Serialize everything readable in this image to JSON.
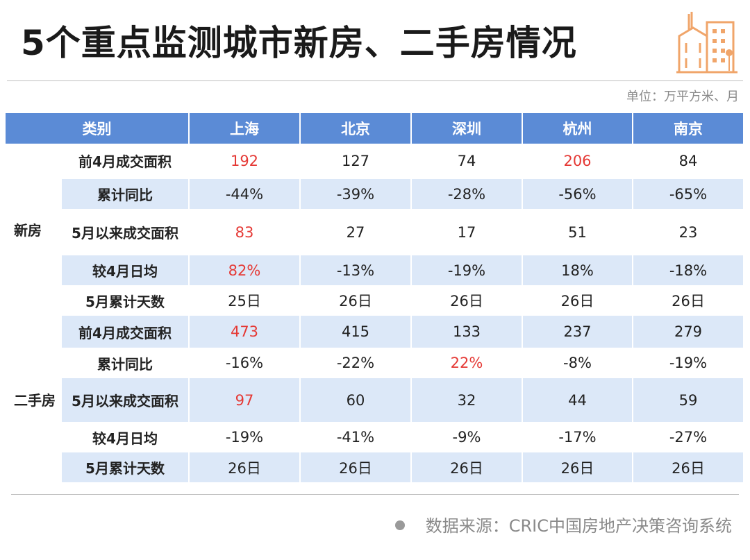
{
  "title": "5个重点监测城市新房、二手房情况",
  "unit": "单位：万平方米、月",
  "colors": {
    "header_bg": "#5b8bd6",
    "row_shade": "#dce8f8",
    "highlight": "#e53935",
    "logo": "#f0a56a"
  },
  "table": {
    "headers": [
      "类别",
      "上海",
      "北京",
      "深圳",
      "杭州",
      "南京"
    ],
    "groups": [
      {
        "name": "新房",
        "rows": [
          {
            "metric": "前4月成交面积",
            "values": [
              "192",
              "127",
              "74",
              "206",
              "84"
            ],
            "highlight": [
              true,
              false,
              false,
              true,
              false
            ]
          },
          {
            "metric": "累计同比",
            "values": [
              "-44%",
              "-39%",
              "-28%",
              "-56%",
              "-65%"
            ],
            "highlight": [
              false,
              false,
              false,
              false,
              false
            ]
          },
          {
            "metric": "5月以来成交面积",
            "values": [
              "83",
              "27",
              "17",
              "51",
              "23"
            ],
            "highlight": [
              true,
              false,
              false,
              false,
              false
            ]
          },
          {
            "metric": "较4月日均",
            "values": [
              "82%",
              "-13%",
              "-19%",
              "18%",
              "-18%"
            ],
            "highlight": [
              true,
              false,
              false,
              false,
              false
            ]
          },
          {
            "metric": "5月累计天数",
            "values": [
              "25日",
              "26日",
              "26日",
              "26日",
              "26日"
            ],
            "highlight": [
              false,
              false,
              false,
              false,
              false
            ]
          }
        ]
      },
      {
        "name": "二手房",
        "rows": [
          {
            "metric": "前4月成交面积",
            "values": [
              "473",
              "415",
              "133",
              "237",
              "279"
            ],
            "highlight": [
              true,
              false,
              false,
              false,
              false
            ]
          },
          {
            "metric": "累计同比",
            "values": [
              "-16%",
              "-22%",
              "22%",
              "-8%",
              "-19%"
            ],
            "highlight": [
              false,
              false,
              true,
              false,
              false
            ]
          },
          {
            "metric": "5月以来成交面积",
            "values": [
              "97",
              "60",
              "32",
              "44",
              "59"
            ],
            "highlight": [
              true,
              false,
              false,
              false,
              false
            ]
          },
          {
            "metric": "较4月日均",
            "values": [
              "-19%",
              "-41%",
              "-9%",
              "-17%",
              "-27%"
            ],
            "highlight": [
              false,
              false,
              false,
              false,
              false
            ]
          },
          {
            "metric": "5月累计天数",
            "values": [
              "26日",
              "26日",
              "26日",
              "26日",
              "26日"
            ],
            "highlight": [
              false,
              false,
              false,
              false,
              false
            ]
          }
        ]
      }
    ]
  },
  "source": "数据来源：CRIC中国房地产决策咨询系统",
  "logo_icon": "buildings-icon"
}
